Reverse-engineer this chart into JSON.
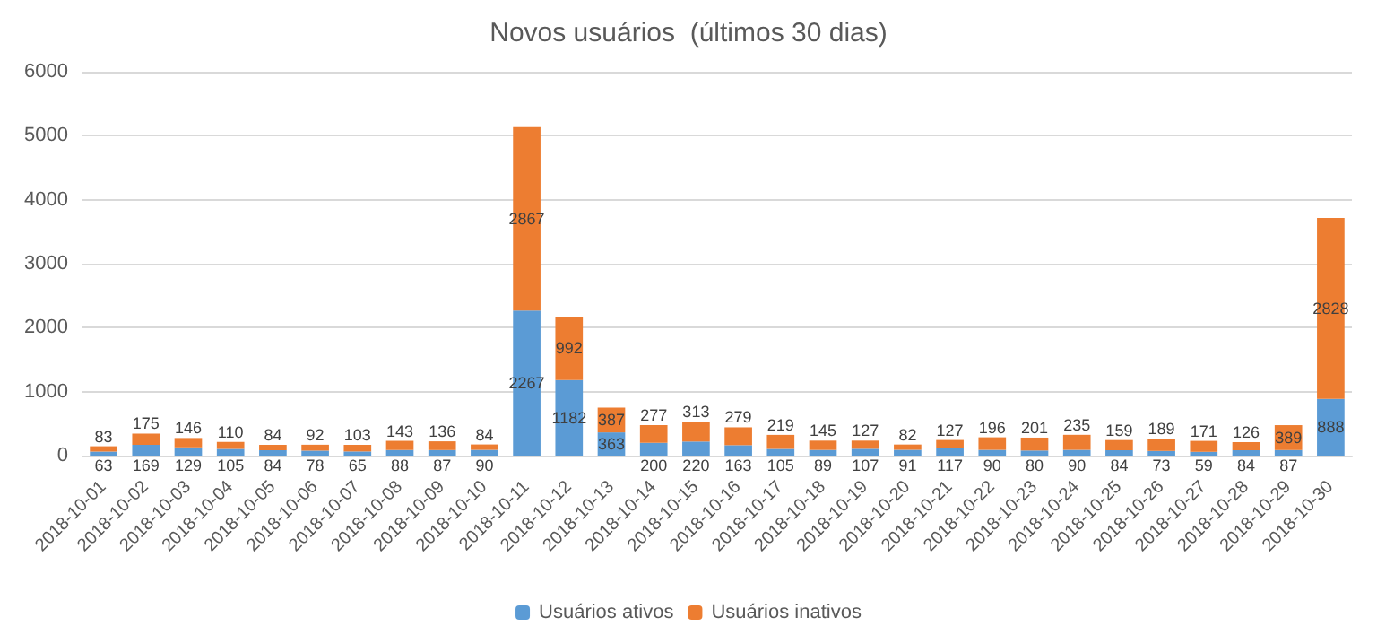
{
  "chart_data": {
    "type": "bar",
    "title": "Novos usuários  (últimos 30 dias)",
    "stacked": true,
    "data_labels": true,
    "grid": "y",
    "legend": "bottom",
    "categories": [
      "2018-10-01",
      "2018-10-02",
      "2018-10-03",
      "2018-10-04",
      "2018-10-05",
      "2018-10-06",
      "2018-10-07",
      "2018-10-08",
      "2018-10-09",
      "2018-10-10",
      "2018-10-11",
      "2018-10-12",
      "2018-10-13",
      "2018-10-14",
      "2018-10-15",
      "2018-10-16",
      "2018-10-17",
      "2018-10-18",
      "2018-10-19",
      "2018-10-20",
      "2018-10-21",
      "2018-10-22",
      "2018-10-23",
      "2018-10-24",
      "2018-10-25",
      "2018-10-26",
      "2018-10-27",
      "2018-10-28",
      "2018-10-29",
      "2018-10-30"
    ],
    "ylim": [
      0,
      6000
    ],
    "yticks": [
      0,
      1000,
      2000,
      3000,
      4000,
      5000,
      6000
    ],
    "series": [
      {
        "name": "Usuários ativos",
        "color": "#5b9bd5",
        "values": [
          63,
          169,
          129,
          105,
          84,
          78,
          65,
          88,
          87,
          90,
          2267,
          1182,
          363,
          200,
          220,
          163,
          105,
          89,
          107,
          91,
          117,
          90,
          80,
          90,
          84,
          73,
          59,
          84,
          87,
          888
        ]
      },
      {
        "name": "Usuários inativos",
        "color": "#ed7d31",
        "values": [
          83,
          175,
          146,
          110,
          84,
          92,
          103,
          143,
          136,
          84,
          2867,
          992,
          387,
          277,
          313,
          279,
          219,
          145,
          127,
          82,
          127,
          196,
          201,
          235,
          159,
          189,
          171,
          126,
          389,
          2828
        ]
      }
    ]
  }
}
